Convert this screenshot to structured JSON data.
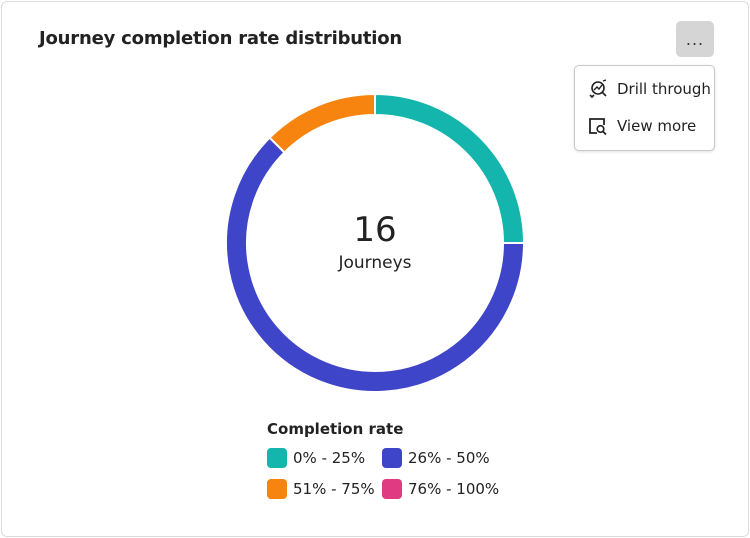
{
  "card": {
    "title": "Journey completion rate distribution",
    "more_button_label": "...",
    "menu": [
      {
        "label": "Drill through",
        "icon": "drill-through-icon"
      },
      {
        "label": "View more",
        "icon": "view-more-icon"
      }
    ]
  },
  "chart_data": {
    "type": "pie",
    "variant": "donut",
    "center_value": "16",
    "center_label": "Journeys",
    "legend_title": "Completion rate",
    "legend_placement": "bottom",
    "categories": [
      "0% - 25%",
      "26% - 50%",
      "51% - 75%",
      "76% - 100%"
    ],
    "values": [
      4,
      10,
      2,
      0
    ],
    "colors": [
      "#14b5ad",
      "#3f45c9",
      "#f6840f",
      "#e03b82"
    ]
  }
}
